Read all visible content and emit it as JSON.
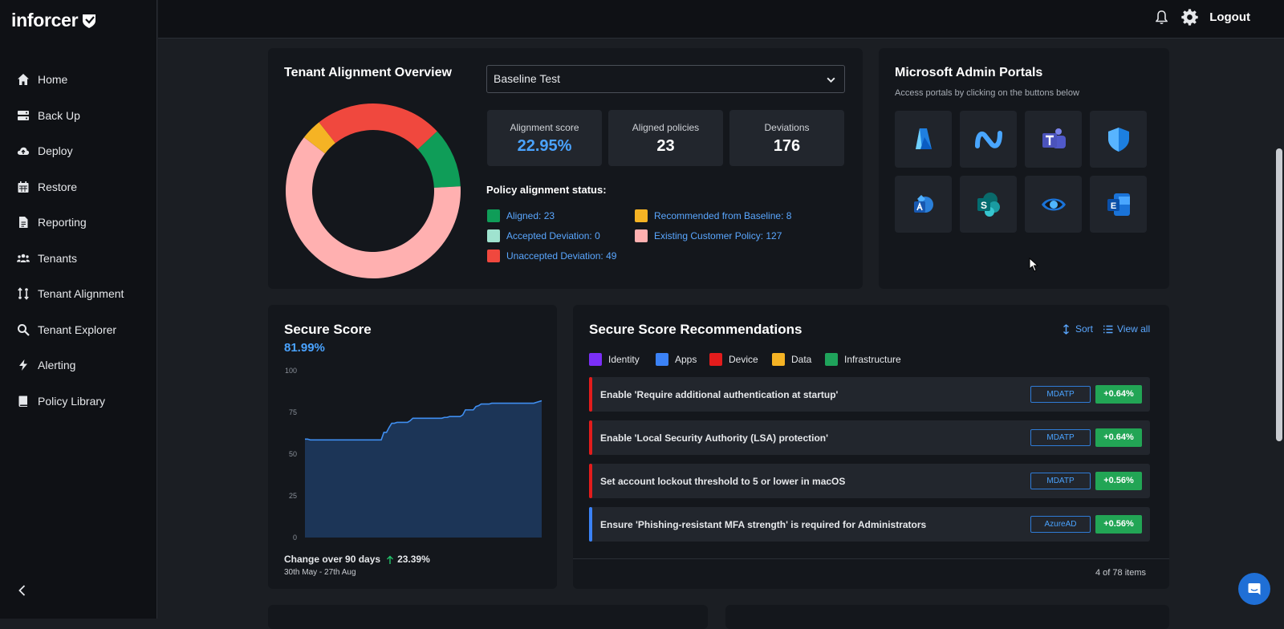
{
  "app": {
    "name": "inforcer",
    "logout_label": "Logout"
  },
  "sidebar": {
    "items": [
      {
        "label": "Home",
        "icon": "home-icon"
      },
      {
        "label": "Back Up",
        "icon": "server-icon"
      },
      {
        "label": "Deploy",
        "icon": "cloud-upload-icon"
      },
      {
        "label": "Restore",
        "icon": "calendar-icon"
      },
      {
        "label": "Reporting",
        "icon": "document-icon"
      },
      {
        "label": "Tenants",
        "icon": "users-icon"
      },
      {
        "label": "Tenant Alignment",
        "icon": "sync-icon"
      },
      {
        "label": "Tenant Explorer",
        "icon": "search-icon"
      },
      {
        "label": "Alerting",
        "icon": "bolt-icon"
      },
      {
        "label": "Policy Library",
        "icon": "book-icon"
      }
    ]
  },
  "alignment": {
    "title": "Tenant Alignment Overview",
    "baseline_selected": "Baseline Test",
    "stats": [
      {
        "label": "Alignment score",
        "value": "22.95%"
      },
      {
        "label": "Aligned policies",
        "value": "23"
      },
      {
        "label": "Deviations",
        "value": "176"
      }
    ],
    "status_title": "Policy alignment status:",
    "legend": [
      {
        "label": "Aligned: 23",
        "color": "#0f9d58"
      },
      {
        "label": "Recommended from Baseline: 8",
        "color": "#f5b324"
      },
      {
        "label": "Accepted Deviation: 0",
        "color": "#9fe3cf"
      },
      {
        "label": "Existing Customer Policy: 127",
        "color": "#ffb0b0"
      },
      {
        "label": "Unaccepted Deviation: 49",
        "color": "#f0483e"
      }
    ],
    "donut": [
      {
        "name": "Aligned",
        "value": 23,
        "color": "#0f9d58"
      },
      {
        "name": "Accepted Deviation",
        "value": 0,
        "color": "#9fe3cf"
      },
      {
        "name": "Existing Customer Policy",
        "value": 127,
        "color": "#ffb0b0"
      },
      {
        "name": "Recommended from Baseline",
        "value": 8,
        "color": "#f5b324"
      },
      {
        "name": "Unaccepted Deviation",
        "value": 49,
        "color": "#f0483e"
      }
    ]
  },
  "portals": {
    "title": "Microsoft Admin Portals",
    "subtitle": "Access portals by clicking on the buttons below",
    "items": [
      {
        "name": "azure-portal-icon"
      },
      {
        "name": "intune-portal-icon"
      },
      {
        "name": "teams-portal-icon"
      },
      {
        "name": "defender-portal-icon"
      },
      {
        "name": "admin-center-portal-icon"
      },
      {
        "name": "sharepoint-portal-icon"
      },
      {
        "name": "purview-portal-icon"
      },
      {
        "name": "exchange-portal-icon"
      }
    ]
  },
  "secure_score": {
    "title": "Secure Score",
    "value": "81.99%",
    "change_label": "Change over 90 days",
    "change_value": "23.39%",
    "date_range": "30th May - 27th Aug",
    "chart_data": {
      "type": "area",
      "title": "",
      "xlabel": "",
      "ylabel": "",
      "ylim": [
        0,
        100
      ],
      "yticks": [
        0,
        25,
        50,
        75,
        100
      ],
      "grid": false,
      "values": [
        59,
        59,
        58.5,
        58.5,
        58.5,
        58.5,
        58.5,
        58.5,
        58.5,
        58.5,
        58.5,
        58.5,
        58.5,
        58.5,
        58.5,
        58.5,
        58.5,
        58.5,
        58.5,
        58.5,
        58.5,
        58.5,
        58.5,
        58.5,
        58.5,
        58.5,
        58.5,
        58.5,
        58.5,
        58.5,
        63,
        63,
        66,
        68.5,
        68.5,
        69,
        69,
        69,
        69,
        69,
        70,
        71.5,
        71.5,
        71.5,
        71.5,
        71.5,
        71.5,
        71.5,
        71.5,
        71.5,
        71.5,
        71.5,
        71.5,
        72,
        72,
        72.5,
        72.5,
        72.5,
        72.5,
        72.5,
        73.5,
        76.5,
        76.5,
        76.5,
        76.5,
        78.5,
        79,
        80,
        80,
        80,
        80,
        80.5,
        80.5,
        80.5,
        80.5,
        80.5,
        80.5,
        80.5,
        80.5,
        80.5,
        80.5,
        80.5,
        80.5,
        80.5,
        80.5,
        80.5,
        80.5,
        80.5,
        81,
        81.5,
        81.99
      ]
    }
  },
  "recommendations": {
    "title": "Secure Score Recommendations",
    "sort_label": "Sort",
    "view_all_label": "View all",
    "categories": [
      {
        "label": "Identity",
        "color": "#7b2ff7"
      },
      {
        "label": "Apps",
        "color": "#3b82f6"
      },
      {
        "label": "Device",
        "color": "#e31c1c"
      },
      {
        "label": "Data",
        "color": "#f5b324"
      },
      {
        "label": "Infrastructure",
        "color": "#1fa35b"
      }
    ],
    "items": [
      {
        "text": "Enable 'Require additional authentication at startup'",
        "tag": "MDATP",
        "pct": "+0.64%",
        "color": "#e31c1c"
      },
      {
        "text": "Enable 'Local Security Authority (LSA) protection'",
        "tag": "MDATP",
        "pct": "+0.64%",
        "color": "#e31c1c"
      },
      {
        "text": "Set account lockout threshold to 5 or lower in macOS",
        "tag": "MDATP",
        "pct": "+0.56%",
        "color": "#e31c1c"
      },
      {
        "text": "Ensure 'Phishing-resistant MFA strength' is required for Administrators",
        "tag": "AzureAD",
        "pct": "+0.56%",
        "color": "#3b82f6"
      }
    ],
    "footer": "4 of 78 items"
  }
}
